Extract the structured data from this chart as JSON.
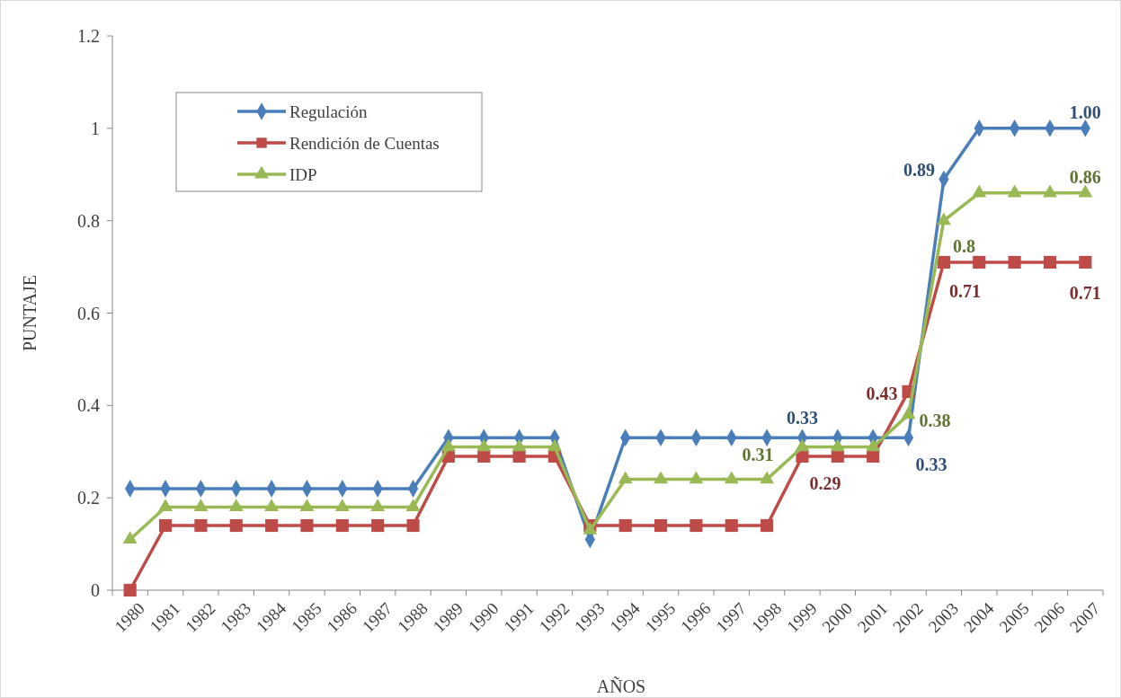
{
  "chart_data": {
    "type": "line",
    "xlabel": "AÑOS",
    "ylabel": "PUNTAJE",
    "categories": [
      "1980",
      "1981",
      "1982",
      "1983",
      "1984",
      "1985",
      "1986",
      "1987",
      "1988",
      "1989",
      "1990",
      "1991",
      "1992",
      "1993",
      "1994",
      "1995",
      "1996",
      "1997",
      "1998",
      "1999",
      "2000",
      "2001",
      "2002",
      "2003",
      "2004",
      "2005",
      "2006",
      "2007"
    ],
    "series": [
      {
        "name": "Regulación",
        "color": "#4a7ebb",
        "marker": "diamond",
        "values": [
          0.22,
          0.22,
          0.22,
          0.22,
          0.22,
          0.22,
          0.22,
          0.22,
          0.22,
          0.33,
          0.33,
          0.33,
          0.33,
          0.11,
          0.33,
          0.33,
          0.33,
          0.33,
          0.33,
          0.33,
          0.33,
          0.33,
          0.33,
          0.89,
          1.0,
          1.0,
          1.0,
          1.0
        ],
        "value_labels": [
          null,
          null,
          null,
          null,
          null,
          null,
          null,
          null,
          null,
          null,
          null,
          null,
          null,
          null,
          null,
          null,
          null,
          null,
          null,
          "0.33",
          null,
          null,
          "0.33",
          "0.89",
          null,
          null,
          null,
          "1.00"
        ]
      },
      {
        "name": "Rendición de Cuentas",
        "color": "#be4b48",
        "marker": "square",
        "values": [
          0,
          0.14,
          0.14,
          0.14,
          0.14,
          0.14,
          0.14,
          0.14,
          0.14,
          0.29,
          0.29,
          0.29,
          0.29,
          0.14,
          0.14,
          0.14,
          0.14,
          0.14,
          0.14,
          0.29,
          0.29,
          0.29,
          0.43,
          0.71,
          0.71,
          0.71,
          0.71,
          0.71
        ],
        "value_labels": [
          null,
          null,
          null,
          null,
          null,
          null,
          null,
          null,
          null,
          null,
          null,
          null,
          null,
          null,
          null,
          null,
          null,
          null,
          null,
          "0.29",
          null,
          null,
          "0.43",
          "0.71",
          null,
          null,
          null,
          "0.71"
        ]
      },
      {
        "name": "IDP",
        "color": "#98b954",
        "marker": "triangle",
        "values": [
          0.11,
          0.18,
          0.18,
          0.18,
          0.18,
          0.18,
          0.18,
          0.18,
          0.18,
          0.31,
          0.31,
          0.31,
          0.31,
          0.13,
          0.24,
          0.24,
          0.24,
          0.24,
          0.24,
          0.31,
          0.31,
          0.31,
          0.38,
          0.8,
          0.86,
          0.86,
          0.86,
          0.86
        ],
        "value_labels": [
          null,
          null,
          null,
          null,
          null,
          null,
          null,
          null,
          null,
          null,
          null,
          null,
          null,
          null,
          null,
          null,
          null,
          null,
          null,
          "0.31",
          null,
          null,
          "0.38",
          "0.8",
          null,
          null,
          null,
          "0.86"
        ]
      }
    ],
    "ylim": [
      0,
      1.2
    ],
    "yticks": [
      {
        "value": 0,
        "label": "0"
      },
      {
        "value": 0.2,
        "label": "0.2"
      },
      {
        "value": 0.4,
        "label": "0.4"
      },
      {
        "value": 0.6,
        "label": "0.6"
      },
      {
        "value": 0.8,
        "label": "0.8"
      },
      {
        "value": 1,
        "label": "1"
      },
      {
        "value": 1.2,
        "label": "1.2"
      }
    ],
    "grid": false,
    "legend": "top left",
    "line_style": "solid"
  }
}
